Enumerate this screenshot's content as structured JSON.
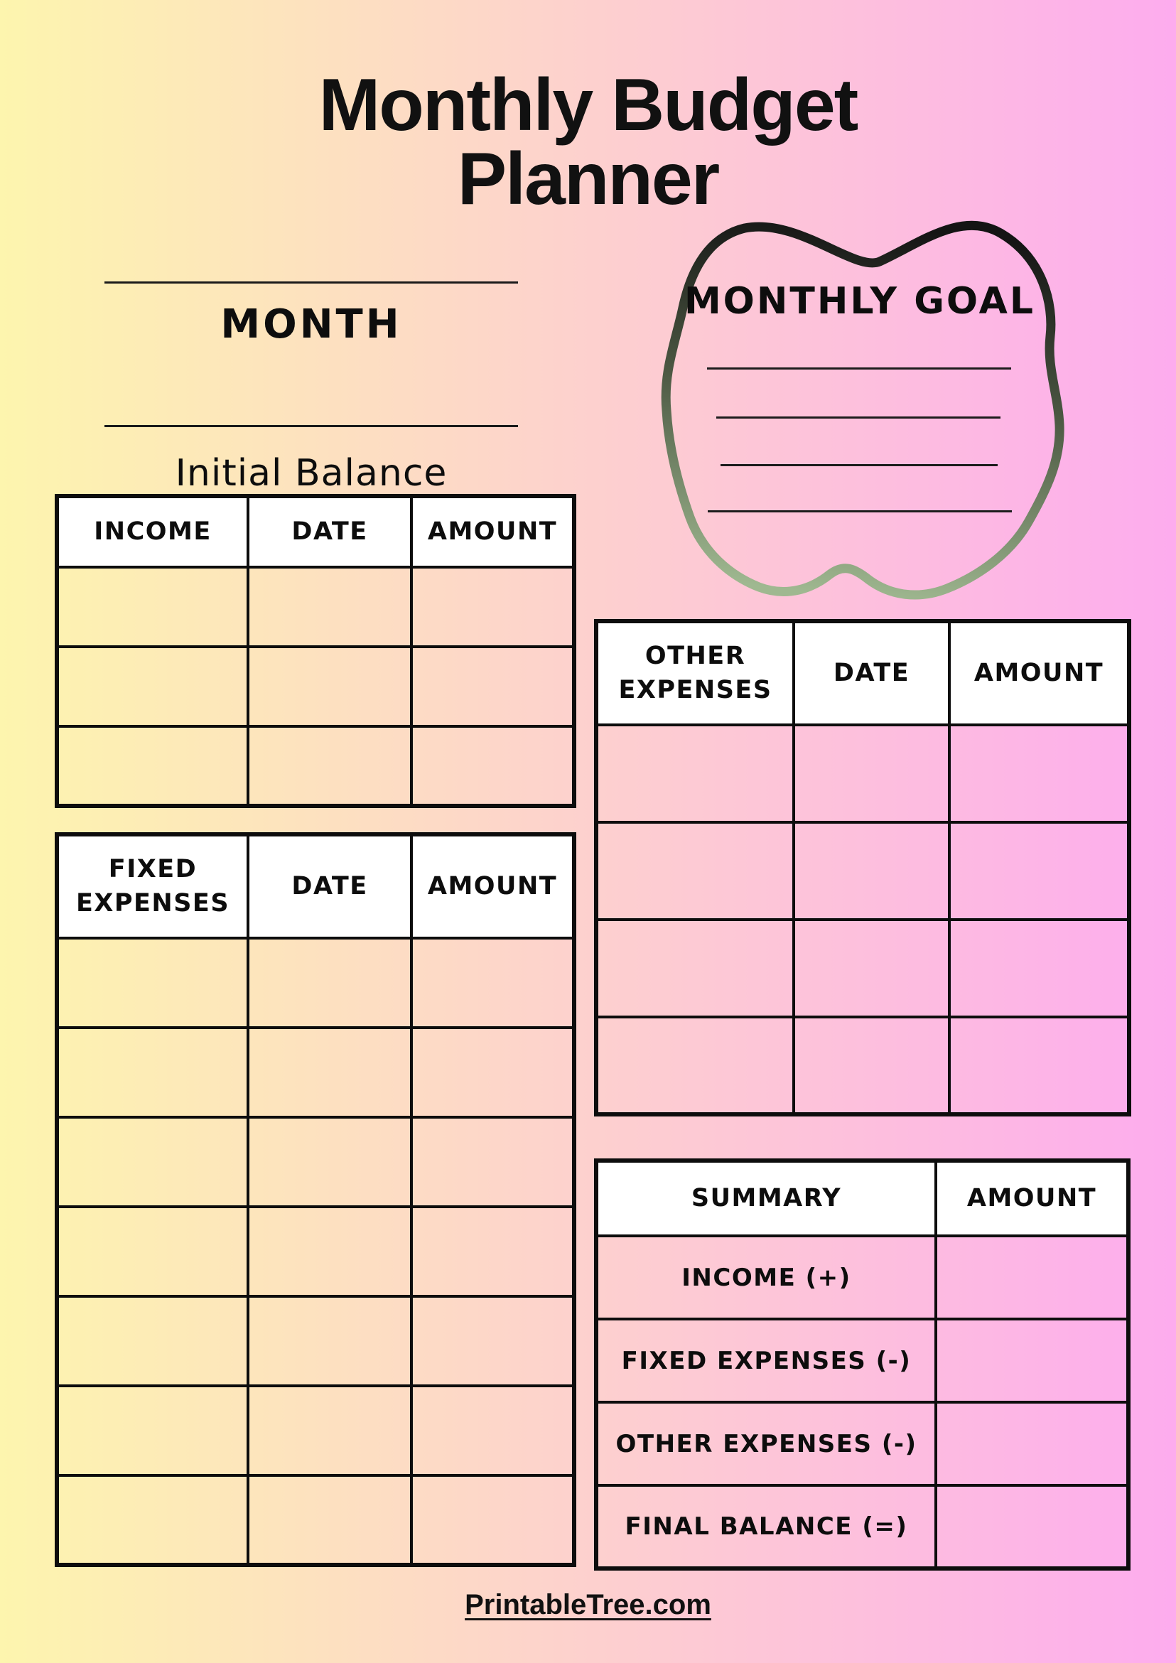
{
  "page": {
    "title_line1": "Monthly Budget",
    "title_line2": "Planner",
    "footer_link": "PrintableTree.com"
  },
  "colors": {
    "background_left": "#fdf5ae",
    "background_right": "#fdacee",
    "table_header_bg": "#ffffff",
    "table_border": "#0d0d0d",
    "text": "#111111",
    "blob_gradient_top": "#141414",
    "blob_gradient_middle": "#4b5742",
    "blob_gradient_bottom": "#9fb890"
  },
  "month_section": {
    "month_label": "MONTH",
    "initial_balance_label": "Initial Balance"
  },
  "monthly_goal": {
    "title": "MONTHLY GOAL",
    "ruled_lines": 4
  },
  "tables": {
    "income": {
      "headers": [
        "INCOME",
        "DATE",
        "AMOUNT"
      ],
      "empty_rows": 3
    },
    "fixed_expenses": {
      "headers": [
        "FIXED EXPENSES",
        "DATE",
        "AMOUNT"
      ],
      "empty_rows": 7
    },
    "other_expenses": {
      "headers": [
        "OTHER EXPENSES",
        "DATE",
        "AMOUNT"
      ],
      "empty_rows": 4
    },
    "summary": {
      "headers": [
        "SUMMARY",
        "AMOUNT"
      ],
      "rows": [
        "INCOME (+)",
        "FIXED EXPENSES (-)",
        "OTHER EXPENSES (-)",
        "FINAL BALANCE (=)"
      ]
    }
  }
}
